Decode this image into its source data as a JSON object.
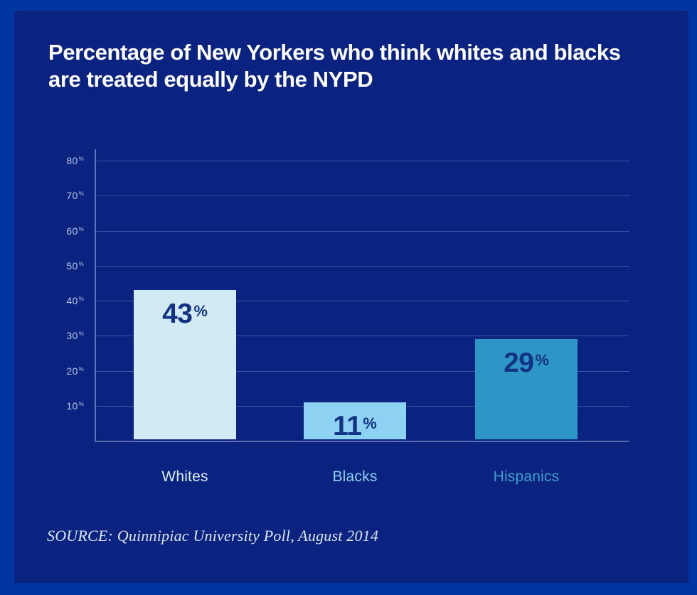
{
  "colors": {
    "background": "#0035a2",
    "panel": "#0b2380",
    "title": "#ffffff",
    "grid": "#a9bade",
    "axis": "#a9bade",
    "tick_label": "#b6c4e2",
    "value_label": "#123383",
    "source": "#dbe7f5"
  },
  "header": {
    "title_line1": "Percentage of New Yorkers who think whites and blacks",
    "title_line2": "are treated equally by the NYPD"
  },
  "footer": {
    "source": "SOURCE: Quinnipiac University Poll, August 2014"
  },
  "chart_data": {
    "type": "bar",
    "title": "Percentage of New Yorkers who think whites and blacks are treated equally by the NYPD",
    "categories": [
      "Whites",
      "Blacks",
      "Hispanics"
    ],
    "values": [
      43,
      11,
      29
    ],
    "value_labels": [
      "43%",
      "11%",
      "29%"
    ],
    "unit": "%",
    "bar_colors": [
      "#d2eaf4",
      "#8dd2f3",
      "#2e96c6"
    ],
    "category_label_colors": [
      "#d9ecf7",
      "#8dd2f3",
      "#3a9ed0"
    ],
    "xlabel": "",
    "ylabel": "",
    "ylim": [
      0,
      85
    ],
    "yticks": [
      10,
      20,
      30,
      40,
      50,
      60,
      70,
      80
    ],
    "grid": true,
    "legend": false,
    "source": "SOURCE: Quinnipiac University Poll, August 2014"
  }
}
